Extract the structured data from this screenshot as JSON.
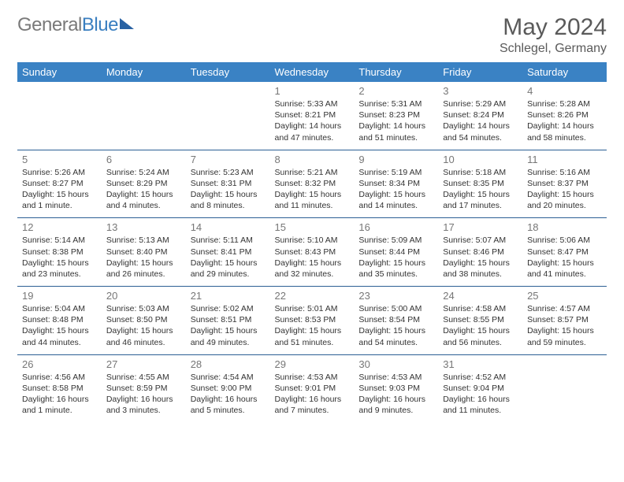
{
  "brand": {
    "part1": "General",
    "part2": "Blue"
  },
  "title": "May 2024",
  "location": "Schlegel, Germany",
  "style": {
    "header_bg": "#3a82c4",
    "header_text": "#ffffff",
    "row_border": "#2b5f94",
    "page_bg": "#ffffff",
    "daynum_color": "#777777",
    "text_color": "#333333",
    "title_color": "#5a5a5a",
    "title_fontsize": 30,
    "header_fontsize": 13,
    "info_fontsize": 10.5
  },
  "weekdays": [
    "Sunday",
    "Monday",
    "Tuesday",
    "Wednesday",
    "Thursday",
    "Friday",
    "Saturday"
  ],
  "weeks": [
    [
      null,
      null,
      null,
      {
        "n": "1",
        "sr": "5:33 AM",
        "ss": "8:21 PM",
        "dl": "14 hours and 47 minutes."
      },
      {
        "n": "2",
        "sr": "5:31 AM",
        "ss": "8:23 PM",
        "dl": "14 hours and 51 minutes."
      },
      {
        "n": "3",
        "sr": "5:29 AM",
        "ss": "8:24 PM",
        "dl": "14 hours and 54 minutes."
      },
      {
        "n": "4",
        "sr": "5:28 AM",
        "ss": "8:26 PM",
        "dl": "14 hours and 58 minutes."
      }
    ],
    [
      {
        "n": "5",
        "sr": "5:26 AM",
        "ss": "8:27 PM",
        "dl": "15 hours and 1 minute."
      },
      {
        "n": "6",
        "sr": "5:24 AM",
        "ss": "8:29 PM",
        "dl": "15 hours and 4 minutes."
      },
      {
        "n": "7",
        "sr": "5:23 AM",
        "ss": "8:31 PM",
        "dl": "15 hours and 8 minutes."
      },
      {
        "n": "8",
        "sr": "5:21 AM",
        "ss": "8:32 PM",
        "dl": "15 hours and 11 minutes."
      },
      {
        "n": "9",
        "sr": "5:19 AM",
        "ss": "8:34 PM",
        "dl": "15 hours and 14 minutes."
      },
      {
        "n": "10",
        "sr": "5:18 AM",
        "ss": "8:35 PM",
        "dl": "15 hours and 17 minutes."
      },
      {
        "n": "11",
        "sr": "5:16 AM",
        "ss": "8:37 PM",
        "dl": "15 hours and 20 minutes."
      }
    ],
    [
      {
        "n": "12",
        "sr": "5:14 AM",
        "ss": "8:38 PM",
        "dl": "15 hours and 23 minutes."
      },
      {
        "n": "13",
        "sr": "5:13 AM",
        "ss": "8:40 PM",
        "dl": "15 hours and 26 minutes."
      },
      {
        "n": "14",
        "sr": "5:11 AM",
        "ss": "8:41 PM",
        "dl": "15 hours and 29 minutes."
      },
      {
        "n": "15",
        "sr": "5:10 AM",
        "ss": "8:43 PM",
        "dl": "15 hours and 32 minutes."
      },
      {
        "n": "16",
        "sr": "5:09 AM",
        "ss": "8:44 PM",
        "dl": "15 hours and 35 minutes."
      },
      {
        "n": "17",
        "sr": "5:07 AM",
        "ss": "8:46 PM",
        "dl": "15 hours and 38 minutes."
      },
      {
        "n": "18",
        "sr": "5:06 AM",
        "ss": "8:47 PM",
        "dl": "15 hours and 41 minutes."
      }
    ],
    [
      {
        "n": "19",
        "sr": "5:04 AM",
        "ss": "8:48 PM",
        "dl": "15 hours and 44 minutes."
      },
      {
        "n": "20",
        "sr": "5:03 AM",
        "ss": "8:50 PM",
        "dl": "15 hours and 46 minutes."
      },
      {
        "n": "21",
        "sr": "5:02 AM",
        "ss": "8:51 PM",
        "dl": "15 hours and 49 minutes."
      },
      {
        "n": "22",
        "sr": "5:01 AM",
        "ss": "8:53 PM",
        "dl": "15 hours and 51 minutes."
      },
      {
        "n": "23",
        "sr": "5:00 AM",
        "ss": "8:54 PM",
        "dl": "15 hours and 54 minutes."
      },
      {
        "n": "24",
        "sr": "4:58 AM",
        "ss": "8:55 PM",
        "dl": "15 hours and 56 minutes."
      },
      {
        "n": "25",
        "sr": "4:57 AM",
        "ss": "8:57 PM",
        "dl": "15 hours and 59 minutes."
      }
    ],
    [
      {
        "n": "26",
        "sr": "4:56 AM",
        "ss": "8:58 PM",
        "dl": "16 hours and 1 minute."
      },
      {
        "n": "27",
        "sr": "4:55 AM",
        "ss": "8:59 PM",
        "dl": "16 hours and 3 minutes."
      },
      {
        "n": "28",
        "sr": "4:54 AM",
        "ss": "9:00 PM",
        "dl": "16 hours and 5 minutes."
      },
      {
        "n": "29",
        "sr": "4:53 AM",
        "ss": "9:01 PM",
        "dl": "16 hours and 7 minutes."
      },
      {
        "n": "30",
        "sr": "4:53 AM",
        "ss": "9:03 PM",
        "dl": "16 hours and 9 minutes."
      },
      {
        "n": "31",
        "sr": "4:52 AM",
        "ss": "9:04 PM",
        "dl": "16 hours and 11 minutes."
      },
      null
    ]
  ],
  "labels": {
    "sunrise": "Sunrise:",
    "sunset": "Sunset:",
    "daylight": "Daylight:"
  }
}
